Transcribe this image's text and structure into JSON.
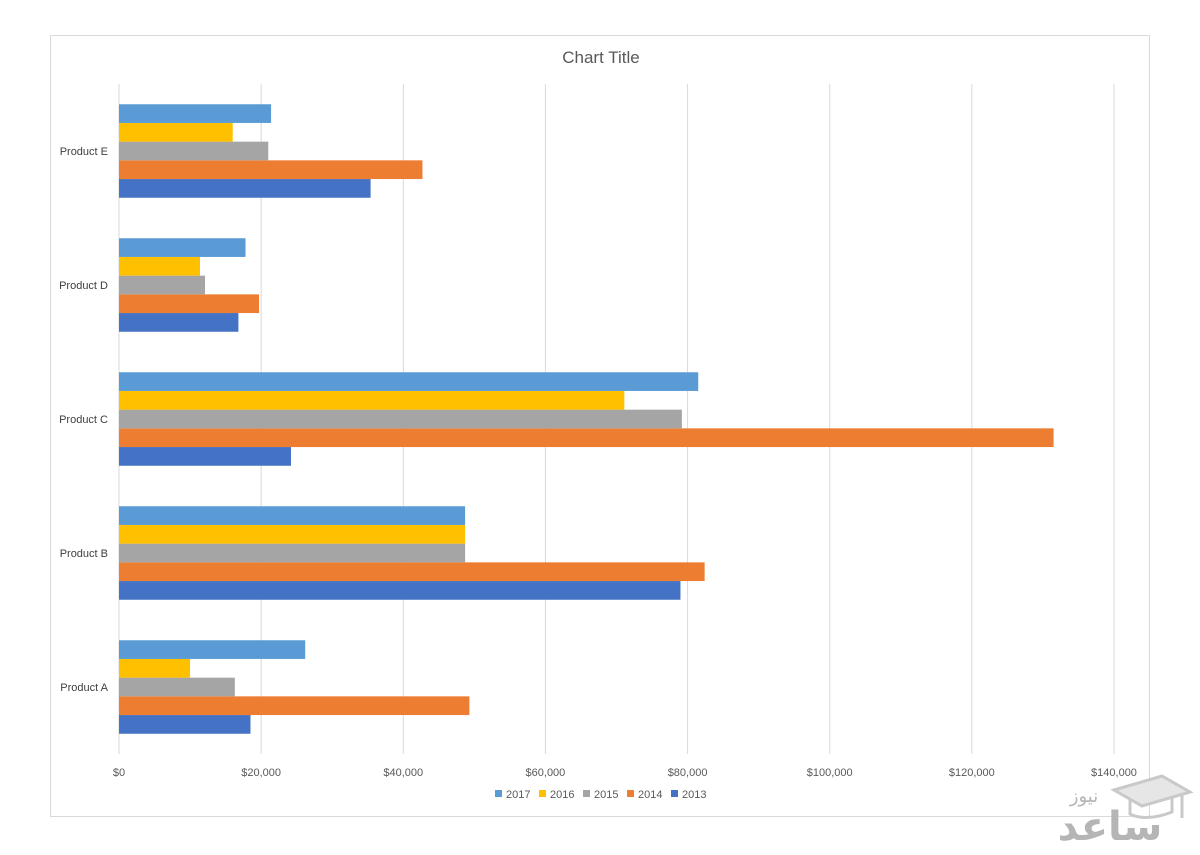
{
  "chart_data": {
    "type": "bar",
    "orientation": "horizontal",
    "title": "Chart Title",
    "categories": [
      "Product A",
      "Product B",
      "Product C",
      "Product D",
      "Product E"
    ],
    "series": [
      {
        "name": "2013",
        "color": "#4472C4",
        "values": [
          18500,
          79000,
          24200,
          16800,
          35400
        ]
      },
      {
        "name": "2014",
        "color": "#ED7D31",
        "values": [
          49300,
          82400,
          131500,
          19700,
          42700
        ]
      },
      {
        "name": "2015",
        "color": "#A5A5A5",
        "values": [
          16300,
          48700,
          79200,
          12100,
          21000
        ]
      },
      {
        "name": "2016",
        "color": "#FFC000",
        "values": [
          10000,
          48700,
          71100,
          11400,
          16000
        ]
      },
      {
        "name": "2017",
        "color": "#5B9BD5",
        "values": [
          26200,
          48700,
          81500,
          17800,
          21400
        ]
      }
    ],
    "xlim": [
      0,
      140000
    ],
    "x_ticks": [
      0,
      20000,
      40000,
      60000,
      80000,
      100000,
      120000,
      140000
    ],
    "x_tick_labels": [
      "$0",
      "$20,000",
      "$40,000",
      "$60,000",
      "$80,000",
      "$100,000",
      "$120,000",
      "$140,000"
    ],
    "legend_order": [
      "2017",
      "2016",
      "2015",
      "2014",
      "2013"
    ],
    "legend_position": "bottom",
    "grid": true,
    "xlabel": "",
    "ylabel": ""
  },
  "watermark": {
    "text_main": "ساعد",
    "text_small": "نیوز"
  }
}
